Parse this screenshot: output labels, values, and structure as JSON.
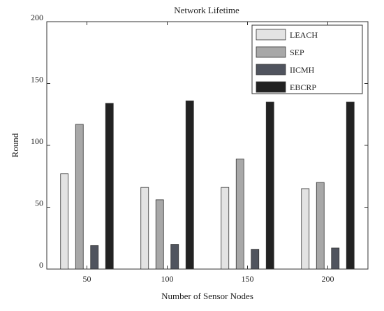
{
  "chart_data": {
    "type": "bar",
    "title": "Network Lifetime",
    "xlabel": "Number of Sensor Nodes",
    "ylabel": "Round",
    "categories": [
      "50",
      "100",
      "150",
      "200"
    ],
    "ylim": [
      0,
      200
    ],
    "yticks": [
      "0",
      "50",
      "100",
      "150",
      "200"
    ],
    "grid": false,
    "legend_position": "top-right",
    "series": [
      {
        "name": "LEACH",
        "color": "#e3e3e3",
        "values": [
          77,
          66,
          66,
          65
        ]
      },
      {
        "name": "SEP",
        "color": "#a8a8a8",
        "values": [
          117,
          56,
          89,
          70
        ]
      },
      {
        "name": "IICMH",
        "color": "#50545e",
        "values": [
          19,
          20,
          16,
          17
        ]
      },
      {
        "name": "EBCRP",
        "color": "#222222",
        "values": [
          134,
          136,
          135,
          135
        ]
      }
    ]
  }
}
